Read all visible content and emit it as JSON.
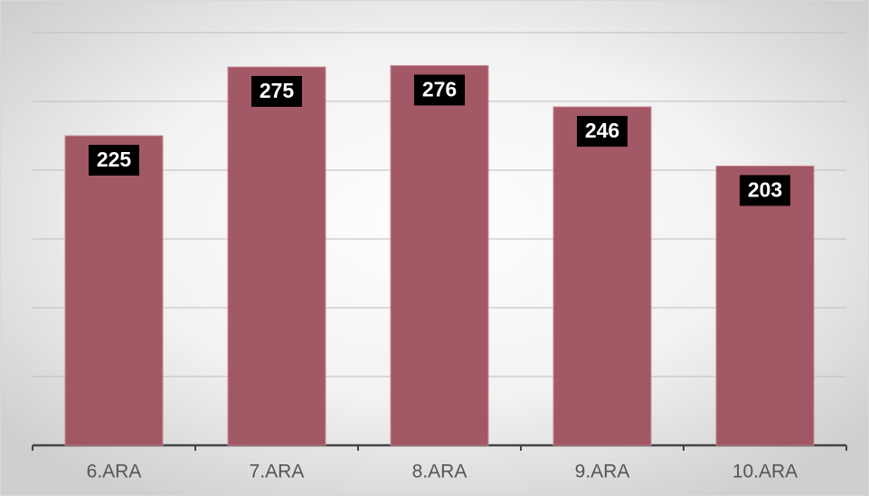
{
  "chart_data": {
    "type": "bar",
    "categories": [
      "6.ARA",
      "7.ARA",
      "8.ARA",
      "9.ARA",
      "10.ARA"
    ],
    "values": [
      225,
      275,
      276,
      246,
      203
    ],
    "color": "#9e4f5d",
    "ylim": [
      0,
      300
    ],
    "yticks": [
      0,
      50,
      100,
      150,
      200,
      250,
      300
    ],
    "ytick_labels": false,
    "grid": true
  }
}
